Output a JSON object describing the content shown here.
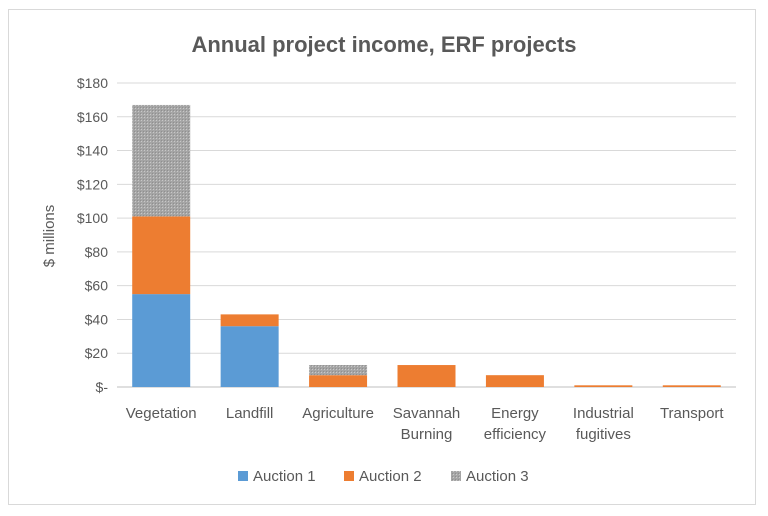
{
  "chart_data": {
    "type": "bar",
    "stacked": true,
    "title": "Annual project income, ERF projects",
    "ylabel": "$ millions",
    "xlabel": "",
    "ylim": [
      0,
      180
    ],
    "yticks": [
      0,
      20,
      40,
      60,
      80,
      100,
      120,
      140,
      160,
      180
    ],
    "ytick_labels": [
      "$-",
      "$20",
      "$40",
      "$60",
      "$80",
      "$100",
      "$120",
      "$140",
      "$160",
      "$180"
    ],
    "grid": true,
    "legend_position": "bottom",
    "categories": [
      [
        "Vegetation"
      ],
      [
        "Landfill"
      ],
      [
        "Agriculture"
      ],
      [
        "Savannah",
        "Burning"
      ],
      [
        "Energy",
        "efficiency"
      ],
      [
        "Industrial",
        "fugitives"
      ],
      [
        "Transport"
      ]
    ],
    "series": [
      {
        "name": "Auction 1",
        "color": "#5b9bd5",
        "values": [
          55,
          36,
          0,
          0,
          0,
          0,
          0
        ]
      },
      {
        "name": "Auction 2",
        "color": "#ed7d31",
        "values": [
          46,
          7,
          7,
          13,
          7,
          1,
          1
        ]
      },
      {
        "name": "Auction 3",
        "color": "#a5a5a5",
        "values": [
          66,
          0,
          6,
          0,
          0,
          0,
          0
        ]
      }
    ]
  }
}
